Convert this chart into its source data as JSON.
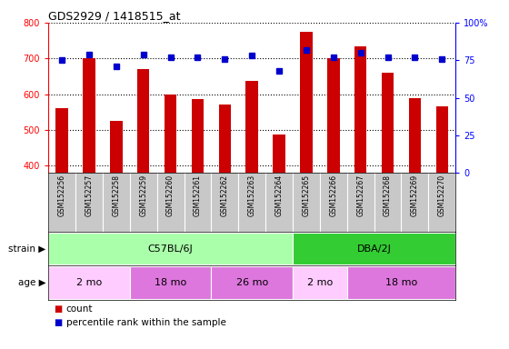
{
  "title": "GDS2929 / 1418515_at",
  "samples": [
    "GSM152256",
    "GSM152257",
    "GSM152258",
    "GSM152259",
    "GSM152260",
    "GSM152261",
    "GSM152262",
    "GSM152263",
    "GSM152264",
    "GSM152265",
    "GSM152266",
    "GSM152267",
    "GSM152268",
    "GSM152269",
    "GSM152270"
  ],
  "counts": [
    562,
    700,
    525,
    670,
    598,
    585,
    570,
    638,
    487,
    775,
    700,
    735,
    660,
    588,
    565
  ],
  "percentile_ranks": [
    75,
    79,
    71,
    79,
    77,
    77,
    76,
    78,
    68,
    82,
    77,
    80,
    77,
    77,
    76
  ],
  "ylim_left": [
    380,
    800
  ],
  "ylim_right": [
    0,
    100
  ],
  "yticks_left": [
    400,
    500,
    600,
    700,
    800
  ],
  "yticks_right": [
    0,
    25,
    50,
    75,
    100
  ],
  "bar_color": "#cc0000",
  "dot_color": "#0000cc",
  "strain_groups": [
    {
      "label": "C57BL/6J",
      "start": 0,
      "end": 9,
      "color": "#aaffaa"
    },
    {
      "label": "DBA/2J",
      "start": 9,
      "end": 15,
      "color": "#33cc33"
    }
  ],
  "age_groups": [
    {
      "label": "2 mo",
      "start": 0,
      "end": 3,
      "color": "#ffccff"
    },
    {
      "label": "18 mo",
      "start": 3,
      "end": 6,
      "color": "#dd77dd"
    },
    {
      "label": "26 mo",
      "start": 6,
      "end": 9,
      "color": "#dd77dd"
    },
    {
      "label": "2 mo",
      "start": 9,
      "end": 11,
      "color": "#ffccff"
    },
    {
      "label": "18 mo",
      "start": 11,
      "end": 15,
      "color": "#dd77dd"
    }
  ]
}
